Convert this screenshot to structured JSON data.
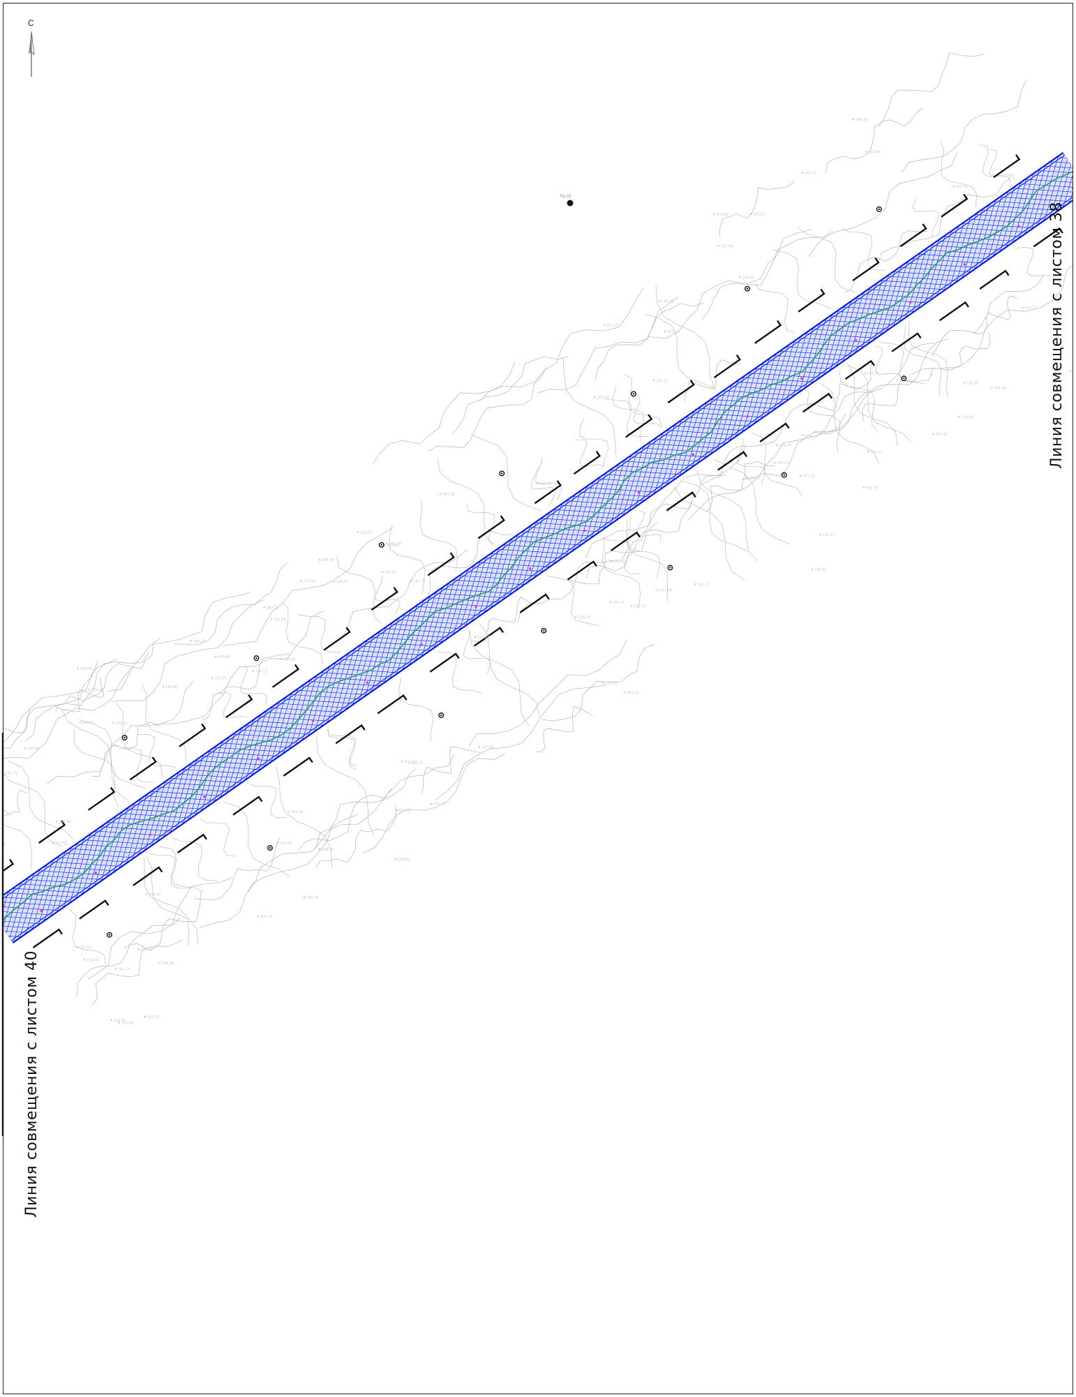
{
  "sheet": {
    "north_label": "С",
    "match_line_top": "Линия совмещения с листом 38",
    "match_line_bottom": "Линия совмещения с листом 40",
    "benchmark_label": "Rp.83"
  },
  "corridor": {
    "fill_color": "#dde3ff",
    "grid_color": "#1f36e0",
    "edge_color": "#0a1fd6",
    "axis_color": "#23a05a",
    "marker_color": "#e03ad0"
  },
  "terrain": {
    "contour_color": "#bdbdbd",
    "spot_color": "#c8c8c8",
    "elevation_labels": [
      "163.31",
      "158.74",
      "162.05",
      "160.92",
      "159.48",
      "161.27",
      "157.63",
      "164.18",
      "156.90",
      "165.42",
      "155.71",
      "162.88",
      "160.15",
      "158.03",
      "163.97",
      "161.64",
      "157.12",
      "159.86",
      "164.55",
      "156.38"
    ]
  },
  "icons": {
    "north_arrow": "north-arrow-icon",
    "well": "well-marker-icon",
    "benchmark": "benchmark-point-icon"
  }
}
